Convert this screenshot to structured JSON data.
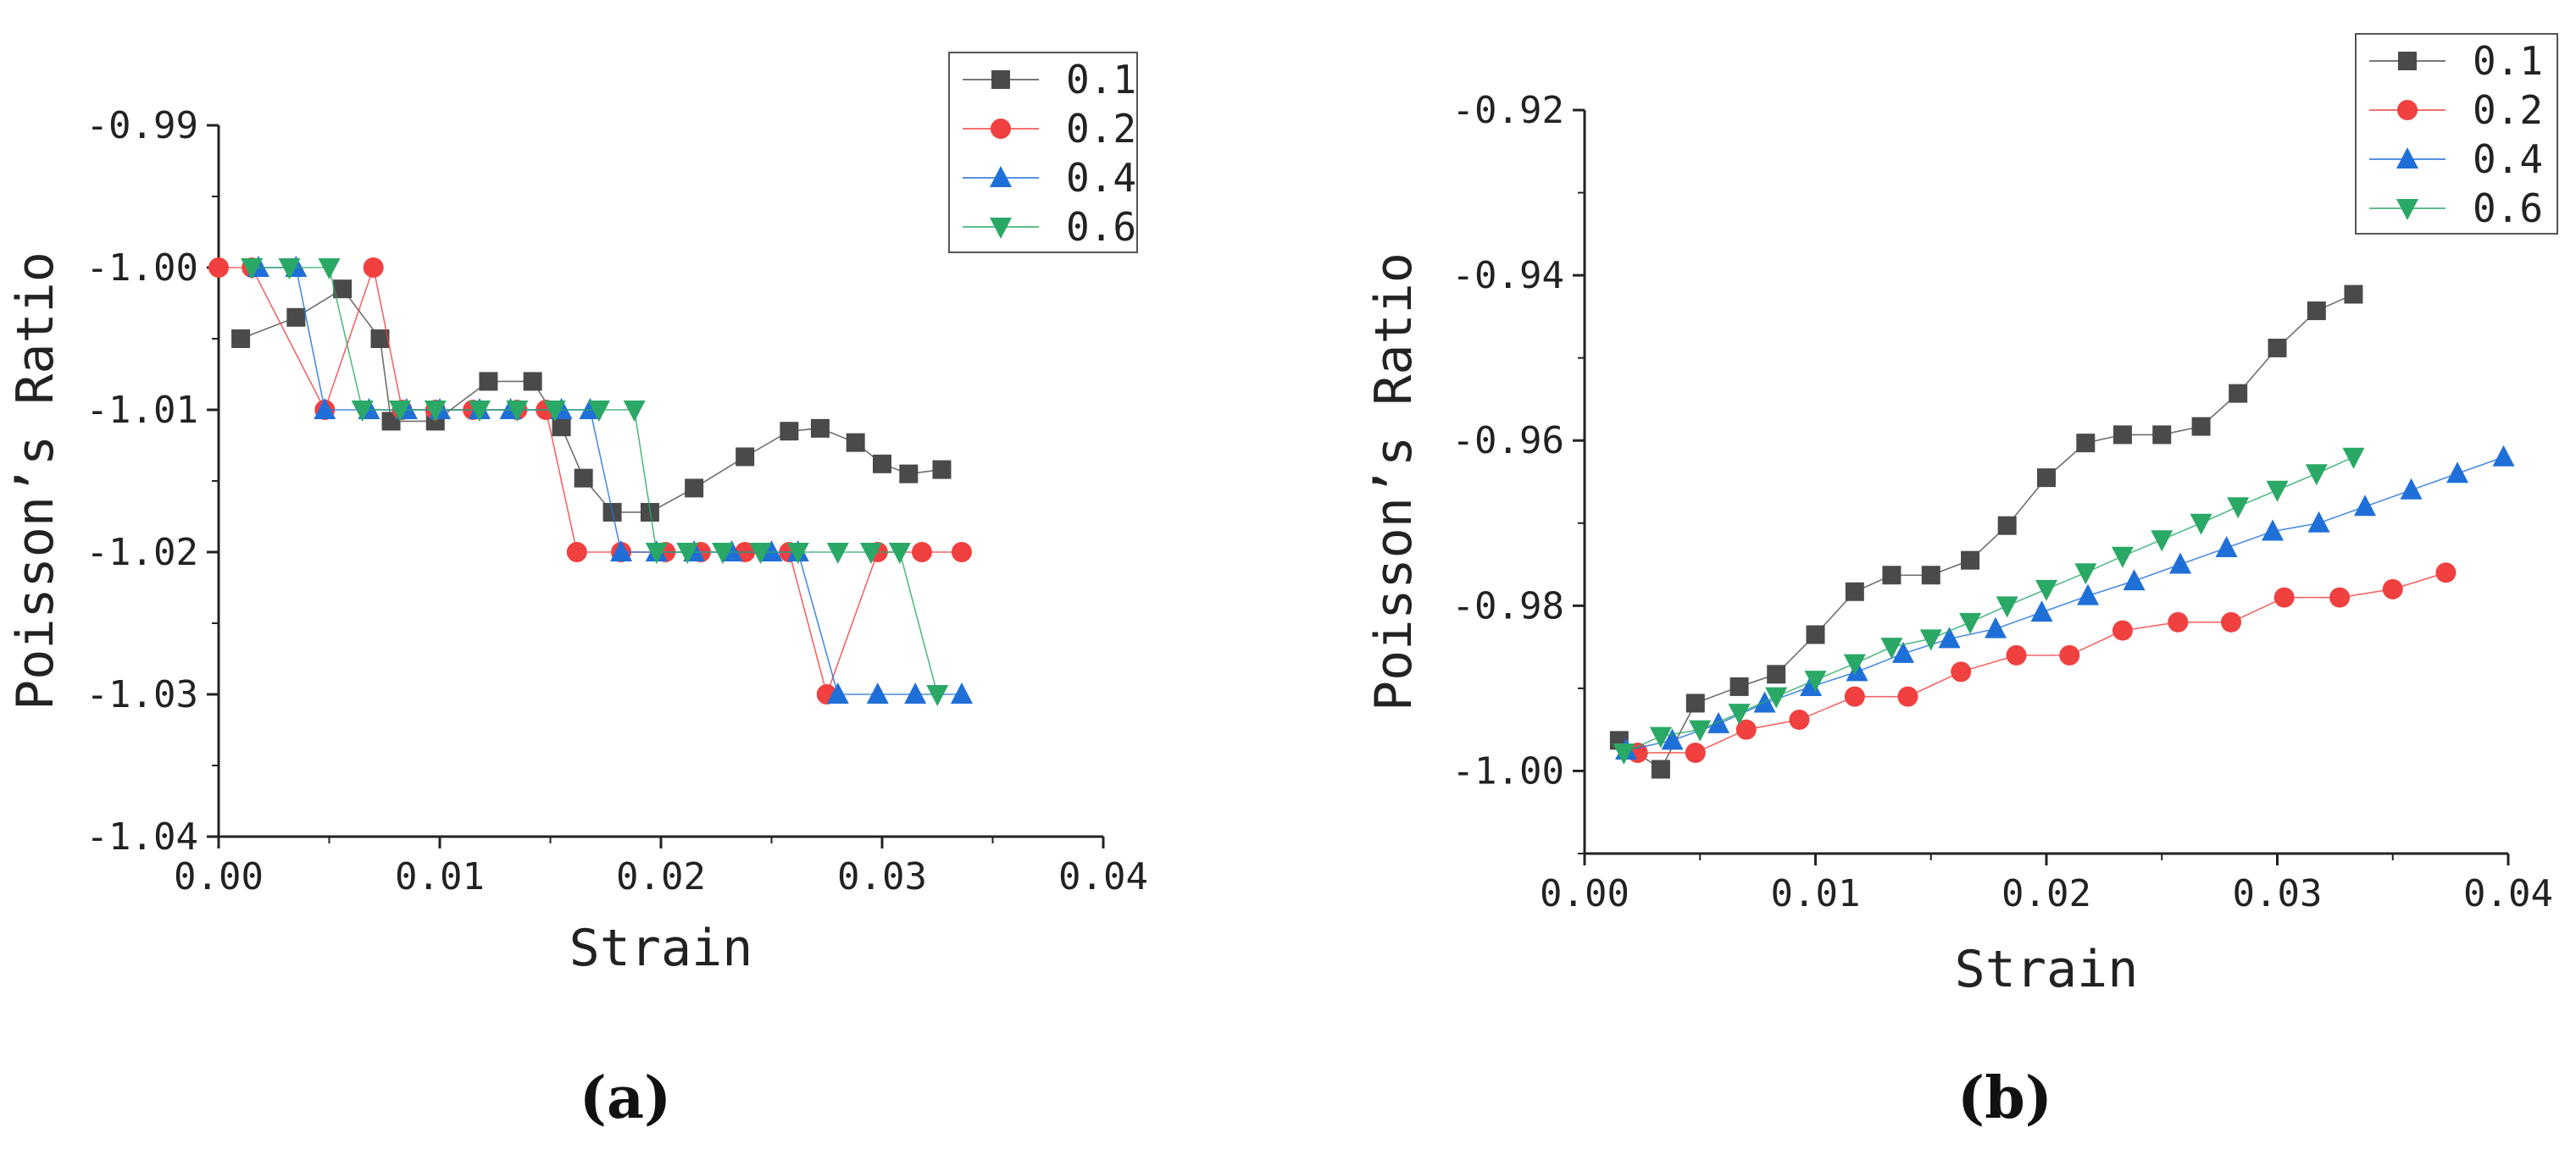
{
  "chart_data": [
    {
      "type": "line",
      "panel_label": "(a)",
      "xlabel": "Strain",
      "ylabel": "Poisson’s Ratio",
      "xlim": [
        0.0,
        0.04
      ],
      "ylim": [
        -1.04,
        -0.99
      ],
      "xticks": [
        "0.00",
        "0.01",
        "0.02",
        "0.03",
        "0.04"
      ],
      "xtick_values": [
        0.0,
        0.01,
        0.02,
        0.03,
        0.04
      ],
      "yticks": [
        "-0.99",
        "-1.00",
        "-1.01",
        "-1.02",
        "-1.03",
        "-1.04"
      ],
      "ytick_values": [
        -0.99,
        -1.0,
        -1.01,
        -1.02,
        -1.03,
        -1.04
      ],
      "legend_position": "top-right",
      "series": [
        {
          "name": "0.1",
          "color": "#4a4a4a",
          "marker": "square",
          "x": [
            0.001,
            0.0035,
            0.0056,
            0.0073,
            0.0078,
            0.0098,
            0.0122,
            0.0142,
            0.0155,
            0.0165,
            0.0178,
            0.0195,
            0.0215,
            0.0238,
            0.0258,
            0.0272,
            0.0288,
            0.03,
            0.0312,
            0.0327
          ],
          "y": [
            -1.005,
            -1.0035,
            -1.0015,
            -1.005,
            -1.0108,
            -1.0108,
            -1.008,
            -1.008,
            -1.0112,
            -1.0148,
            -1.0172,
            -1.0172,
            -1.0155,
            -1.0133,
            -1.0115,
            -1.0113,
            -1.0123,
            -1.0138,
            -1.0145,
            -1.0142
          ]
        },
        {
          "name": "0.2",
          "color": "#f04040",
          "marker": "circle",
          "x": [
            0.0,
            0.0015,
            0.0048,
            0.007,
            0.0083,
            0.0098,
            0.0115,
            0.0135,
            0.0148,
            0.0162,
            0.0182,
            0.0202,
            0.0218,
            0.0238,
            0.0258,
            0.0275,
            0.0298,
            0.0318,
            0.0336
          ],
          "y": [
            -1.0,
            -1.0,
            -1.01,
            -1.0,
            -1.01,
            -1.01,
            -1.01,
            -1.01,
            -1.01,
            -1.02,
            -1.02,
            -1.02,
            -1.02,
            -1.02,
            -1.02,
            -1.03,
            -1.02,
            -1.02,
            -1.02
          ],
          "note": "also red points at 0.0033 (-1.00), 0.0145 (-1.01), 0.0255 (-1.02)"
        },
        {
          "name": "0.4",
          "color": "#1f6fd8",
          "marker": "triangle-up",
          "x": [
            0.0018,
            0.0035,
            0.0048,
            0.0068,
            0.0085,
            0.01,
            0.0118,
            0.0132,
            0.0155,
            0.0168,
            0.0182,
            0.0198,
            0.0215,
            0.0232,
            0.025,
            0.0262,
            0.028,
            0.0298,
            0.0315,
            0.0336
          ],
          "y": [
            -1.0,
            -1.0,
            -1.01,
            -1.01,
            -1.01,
            -1.01,
            -1.01,
            -1.01,
            -1.01,
            -1.01,
            -1.02,
            -1.02,
            -1.02,
            -1.02,
            -1.02,
            -1.02,
            -1.03,
            -1.03,
            -1.03,
            -1.03
          ]
        },
        {
          "name": "0.6",
          "color": "#2aa866",
          "marker": "triangle-down",
          "x": [
            0.0015,
            0.0032,
            0.005,
            0.0065,
            0.0082,
            0.0098,
            0.0118,
            0.0135,
            0.0152,
            0.0172,
            0.0188,
            0.0198,
            0.0212,
            0.0228,
            0.0245,
            0.0262,
            0.028,
            0.0295,
            0.0308,
            0.0325
          ],
          "y": [
            -1.0,
            -1.0,
            -1.0,
            -1.01,
            -1.01,
            -1.01,
            -1.01,
            -1.01,
            -1.01,
            -1.01,
            -1.01,
            -1.02,
            -1.02,
            -1.02,
            -1.02,
            -1.02,
            -1.02,
            -1.02,
            -1.02,
            -1.03
          ]
        }
      ]
    },
    {
      "type": "line",
      "panel_label": "(b)",
      "xlabel": "Strain",
      "ylabel": "Poisson’s Ratio",
      "xlim": [
        0.0,
        0.04
      ],
      "ylim": [
        -1.01,
        -0.92
      ],
      "xticks": [
        "0.00",
        "0.01",
        "0.02",
        "0.03",
        "0.04"
      ],
      "xtick_values": [
        0.0,
        0.01,
        0.02,
        0.03,
        0.04
      ],
      "yticks": [
        "-0.92",
        "-0.94",
        "-0.96",
        "-0.98",
        "-1.00"
      ],
      "ytick_values": [
        -0.92,
        -0.94,
        -0.96,
        -0.98,
        -1.0
      ],
      "legend_position": "top-right",
      "series": [
        {
          "name": "0.1",
          "color": "#4a4a4a",
          "marker": "square",
          "x": [
            0.0015,
            0.0033,
            0.0048,
            0.0067,
            0.0083,
            0.01,
            0.0117,
            0.0133,
            0.015,
            0.0167,
            0.0183,
            0.02,
            0.0217,
            0.0233,
            0.025,
            0.0267,
            0.0283,
            0.03,
            0.0317,
            0.0333
          ],
          "y": [
            -0.9963,
            -0.9998,
            -0.9918,
            -0.9898,
            -0.9883,
            -0.9835,
            -0.9783,
            -0.9763,
            -0.9763,
            -0.9745,
            -0.9703,
            -0.9645,
            -0.9603,
            -0.9593,
            -0.9593,
            -0.9583,
            -0.9543,
            -0.9488,
            -0.9443,
            -0.9423
          ]
        },
        {
          "name": "0.2",
          "color": "#f04040",
          "marker": "circle",
          "x": [
            0.0023,
            0.0048,
            0.007,
            0.0093,
            0.0117,
            0.014,
            0.0163,
            0.0187,
            0.021,
            0.0233,
            0.0257,
            0.028,
            0.0303,
            0.0327,
            0.035,
            0.0373
          ],
          "y": [
            -0.9978,
            -0.9978,
            -0.995,
            -0.9938,
            -0.991,
            -0.991,
            -0.988,
            -0.986,
            -0.986,
            -0.983,
            -0.982,
            -0.982,
            -0.979,
            -0.979,
            -0.978,
            -0.976
          ]
        },
        {
          "name": "0.4",
          "color": "#1f6fd8",
          "marker": "triangle-up",
          "x": [
            0.0018,
            0.0038,
            0.0058,
            0.0078,
            0.0098,
            0.0118,
            0.0138,
            0.0158,
            0.0178,
            0.0198,
            0.0218,
            0.0238,
            0.0258,
            0.0278,
            0.0298,
            0.0318,
            0.0338,
            0.0358,
            0.0378,
            0.0398
          ],
          "y": [
            -0.9975,
            -0.9963,
            -0.9943,
            -0.9918,
            -0.9898,
            -0.988,
            -0.9858,
            -0.984,
            -0.9828,
            -0.9808,
            -0.9788,
            -0.977,
            -0.975,
            -0.973,
            -0.971,
            -0.97,
            -0.968,
            -0.966,
            -0.964,
            -0.962
          ]
        },
        {
          "name": "0.6",
          "color": "#2aa866",
          "marker": "triangle-down",
          "x": [
            0.0017,
            0.0033,
            0.005,
            0.0067,
            0.0083,
            0.01,
            0.0117,
            0.0133,
            0.015,
            0.0167,
            0.0183,
            0.02,
            0.0217,
            0.0233,
            0.025,
            0.0267,
            0.0283,
            0.03,
            0.0317,
            0.0333
          ],
          "y": [
            -0.9978,
            -0.9958,
            -0.995,
            -0.993,
            -0.991,
            -0.989,
            -0.987,
            -0.985,
            -0.984,
            -0.982,
            -0.98,
            -0.978,
            -0.976,
            -0.974,
            -0.972,
            -0.97,
            -0.968,
            -0.966,
            -0.964,
            -0.962
          ]
        }
      ]
    }
  ]
}
